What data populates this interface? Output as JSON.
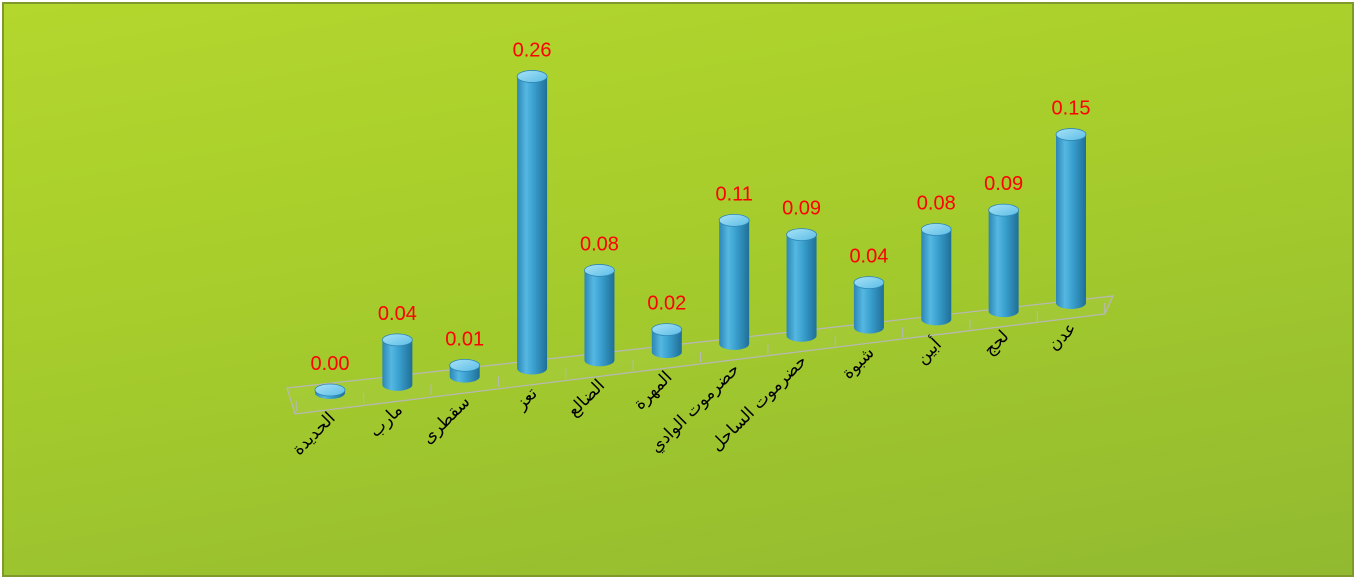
{
  "chart_data": {
    "type": "bar",
    "style": "3d-cylinder",
    "categories": [
      "الحديدة",
      "مارب",
      "سقطرى",
      "تعز",
      "الضالع",
      "المهرة",
      "حضرموت الوادي",
      "حضرموت الساحل",
      "شبوة",
      "أبين",
      "لحج",
      "عدن"
    ],
    "values": [
      0.0,
      0.04,
      0.01,
      0.26,
      0.08,
      0.02,
      0.11,
      0.09,
      0.04,
      0.08,
      0.09,
      0.15
    ],
    "value_labels": [
      "0.00",
      "0.04",
      "0.01",
      "0.26",
      "0.08",
      "0.02",
      "0.11",
      "0.09",
      "0.04",
      "0.08",
      "0.09",
      "0.15"
    ],
    "title": "",
    "xlabel": "",
    "ylabel": "",
    "ylim": [
      0,
      0.26
    ],
    "grid": false,
    "legend": "none",
    "colors": {
      "bar": "#3aa0cf",
      "bar_light": "#8fd3ef",
      "bar_dark": "#1f6f96",
      "value_label": "#ff0000",
      "background_top": "#b4d72d",
      "background_bottom": "#92ba30",
      "floor_line": "#b8b8b8"
    }
  }
}
